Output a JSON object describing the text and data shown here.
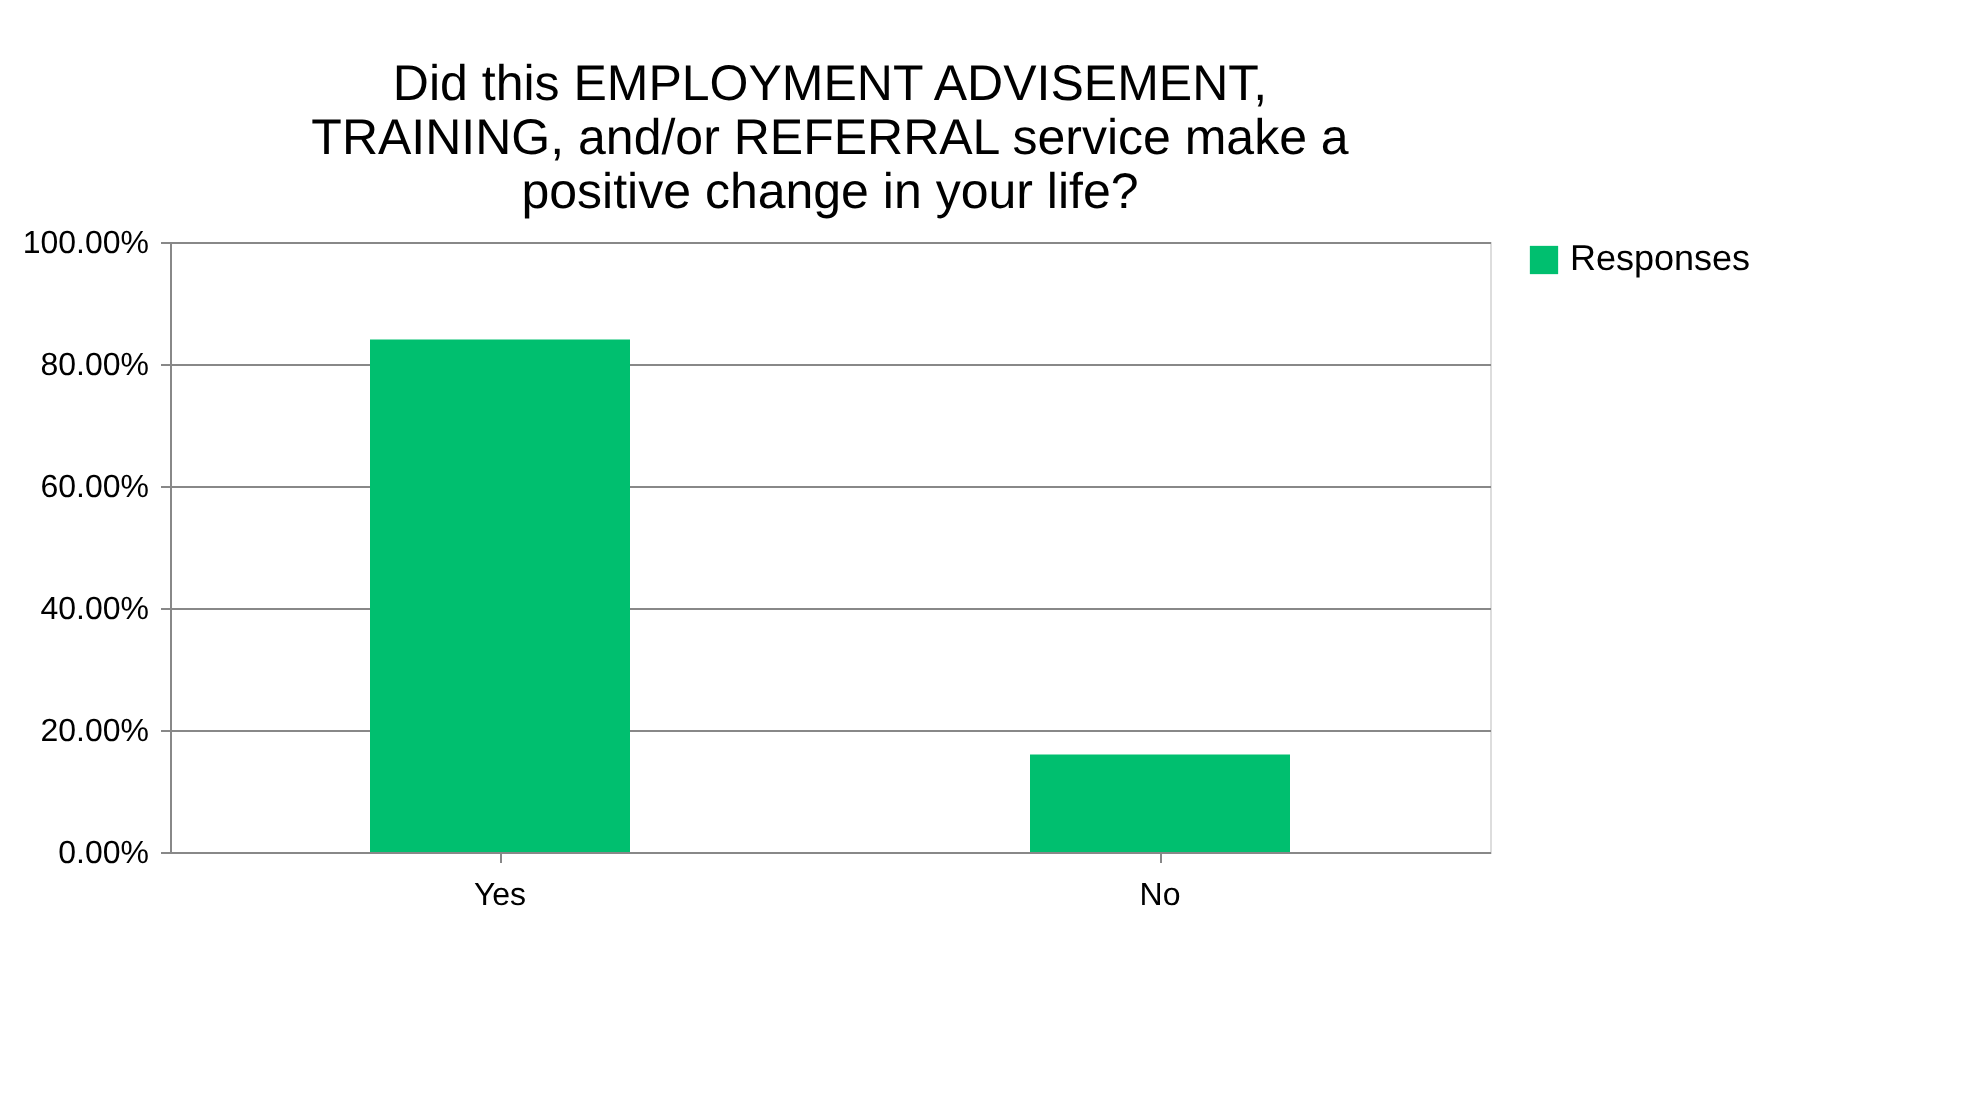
{
  "chart_data": {
    "type": "bar",
    "title": [
      "Did this EMPLOYMENT ADVISEMENT,",
      "TRAINING, and/or REFERRAL service make a",
      "positive change in your life?"
    ],
    "categories": [
      "Yes",
      "No"
    ],
    "series": [
      {
        "name": "Responses",
        "color": "#00bf6f",
        "values": [
          84,
          16
        ]
      }
    ],
    "ylim": [
      0,
      100
    ],
    "yticks": [
      {
        "value": 0,
        "label": "0.00%"
      },
      {
        "value": 20,
        "label": "20.00%"
      },
      {
        "value": 40,
        "label": "40.00%"
      },
      {
        "value": 60,
        "label": "60.00%"
      },
      {
        "value": 80,
        "label": "80.00%"
      },
      {
        "value": 100,
        "label": "100.00%"
      }
    ],
    "grid": "y",
    "legend": "right"
  }
}
